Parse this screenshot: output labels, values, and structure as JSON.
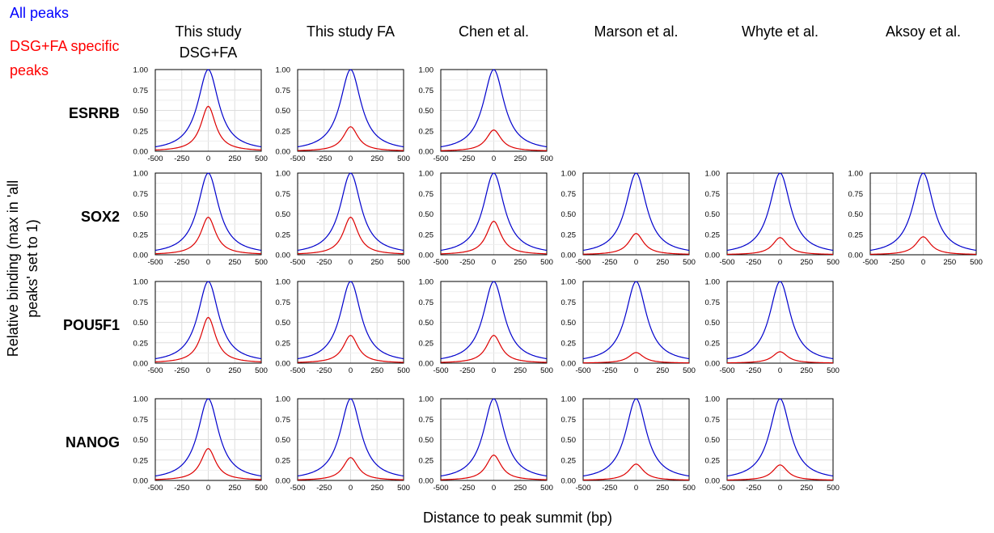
{
  "legend": {
    "all_peaks": "All peaks",
    "specific_peaks": "DSG+FA specific peaks",
    "colors": {
      "all": "#0000cc",
      "specific": "#dd0000"
    }
  },
  "columns": [
    "This study DSG+FA",
    "This study FA",
    "Chen et al.",
    "Marson et al.",
    "Whyte et al.",
    "Aksoy et al."
  ],
  "rows": [
    "ESRRB",
    "SOX2",
    "POU5F1",
    "NANOG"
  ],
  "ylabel": "Relative binding (max in 'all peaks' set to 1)",
  "xlabel": "Distance to peak summit (bp)",
  "chart_data": {
    "type": "line",
    "xlim": [
      -500,
      500
    ],
    "ylim": [
      0,
      1
    ],
    "x_ticks": [
      "-500",
      "-250",
      "0",
      "250",
      "500"
    ],
    "y_ticks": [
      "0.00",
      "0.25",
      "0.50",
      "0.75",
      "1.00"
    ],
    "grid": true,
    "series_names": [
      "All peaks",
      "DSG+FA specific peaks"
    ],
    "panels": [
      {
        "row": "ESRRB",
        "column": "This study DSG+FA",
        "all_peak_max": 1.0,
        "specific_peak_max": 0.55
      },
      {
        "row": "ESRRB",
        "column": "This study FA",
        "all_peak_max": 1.0,
        "specific_peak_max": 0.3
      },
      {
        "row": "ESRRB",
        "column": "Chen et al.",
        "all_peak_max": 1.0,
        "specific_peak_max": 0.26
      },
      {
        "row": "SOX2",
        "column": "This study DSG+FA",
        "all_peak_max": 1.0,
        "specific_peak_max": 0.46
      },
      {
        "row": "SOX2",
        "column": "This study FA",
        "all_peak_max": 1.0,
        "specific_peak_max": 0.46
      },
      {
        "row": "SOX2",
        "column": "Chen et al.",
        "all_peak_max": 1.0,
        "specific_peak_max": 0.41
      },
      {
        "row": "SOX2",
        "column": "Marson et al.",
        "all_peak_max": 1.0,
        "specific_peak_max": 0.26
      },
      {
        "row": "SOX2",
        "column": "Whyte et al.",
        "all_peak_max": 1.0,
        "specific_peak_max": 0.21
      },
      {
        "row": "SOX2",
        "column": "Aksoy et al.",
        "all_peak_max": 1.0,
        "specific_peak_max": 0.22
      },
      {
        "row": "POU5F1",
        "column": "This study DSG+FA",
        "all_peak_max": 1.0,
        "specific_peak_max": 0.56
      },
      {
        "row": "POU5F1",
        "column": "This study FA",
        "all_peak_max": 1.0,
        "specific_peak_max": 0.34
      },
      {
        "row": "POU5F1",
        "column": "Chen et al.",
        "all_peak_max": 1.0,
        "specific_peak_max": 0.34
      },
      {
        "row": "POU5F1",
        "column": "Marson et al.",
        "all_peak_max": 1.0,
        "specific_peak_max": 0.13
      },
      {
        "row": "POU5F1",
        "column": "Whyte et al.",
        "all_peak_max": 1.0,
        "specific_peak_max": 0.14
      },
      {
        "row": "NANOG",
        "column": "This study DSG+FA",
        "all_peak_max": 1.0,
        "specific_peak_max": 0.39
      },
      {
        "row": "NANOG",
        "column": "This study FA",
        "all_peak_max": 1.0,
        "specific_peak_max": 0.28
      },
      {
        "row": "NANOG",
        "column": "Chen et al.",
        "all_peak_max": 1.0,
        "specific_peak_max": 0.31
      },
      {
        "row": "NANOG",
        "column": "Marson et al.",
        "all_peak_max": 1.0,
        "specific_peak_max": 0.2
      },
      {
        "row": "NANOG",
        "column": "Whyte et al.",
        "all_peak_max": 1.0,
        "specific_peak_max": 0.19
      }
    ]
  }
}
